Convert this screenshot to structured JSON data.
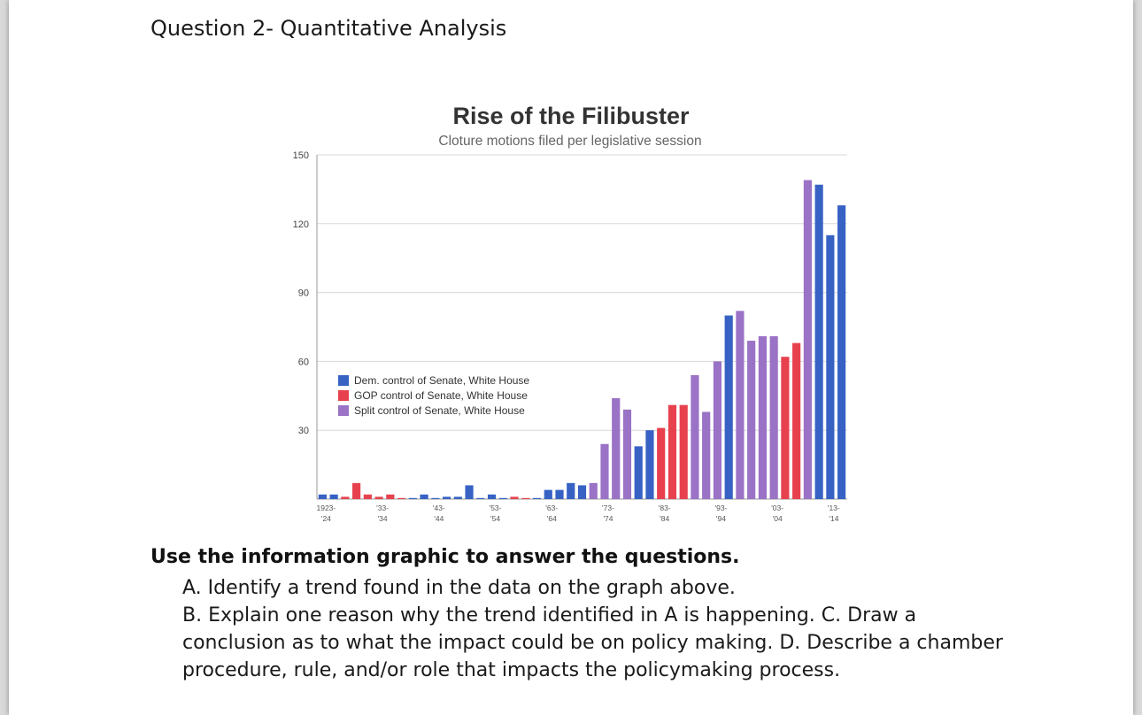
{
  "page": {
    "heading": "Question 2- Quantitative Analysis",
    "instructions": "Use the information graphic to answer the questions.",
    "question_a": "A. Identify a trend found in the data on the graph above.",
    "question_bcd": "B. Explain one reason why the trend identified in A is happening. C. Draw a conclusion as to what the impact could be on policy making. D. Describe a chamber procedure, rule, and/or role that impacts the policymaking process."
  },
  "chart_data": {
    "type": "bar",
    "title": "Rise of the Filibuster",
    "subtitle": "Cloture motions filed per legislative session",
    "xlabel": "",
    "ylabel": "",
    "ylim": [
      0,
      150
    ],
    "yticks": [
      30,
      60,
      90,
      120,
      150
    ],
    "grid": true,
    "legend_position": "left-middle",
    "legend": [
      {
        "key": "dem",
        "label": "Dem. control of Senate, White House",
        "color": "#3762c4"
      },
      {
        "key": "gop",
        "label": "GOP control of Senate, White House",
        "color": "#e8414e"
      },
      {
        "key": "split",
        "label": "Split control of Senate, White House",
        "color": "#9a72c6"
      }
    ],
    "xtick_labels": [
      {
        "index": 0,
        "top": "1923-",
        "bottom": "'24"
      },
      {
        "index": 5,
        "top": "'33-",
        "bottom": "'34"
      },
      {
        "index": 10,
        "top": "'43-",
        "bottom": "'44"
      },
      {
        "index": 15,
        "top": "'53-",
        "bottom": "'54"
      },
      {
        "index": 20,
        "top": "'63-",
        "bottom": "'64"
      },
      {
        "index": 25,
        "top": "'73-",
        "bottom": "'74"
      },
      {
        "index": 30,
        "top": "'83-",
        "bottom": "'84"
      },
      {
        "index": 35,
        "top": "'93-",
        "bottom": "'94"
      },
      {
        "index": 40,
        "top": "'03-",
        "bottom": "'04"
      },
      {
        "index": 45,
        "top": "'13-",
        "bottom": "'14"
      }
    ],
    "bars": [
      {
        "session": "1923-24",
        "value": 2,
        "control": "dem"
      },
      {
        "session": "1925-26",
        "value": 2,
        "control": "dem"
      },
      {
        "session": "1927-28",
        "value": 1,
        "control": "gop"
      },
      {
        "session": "1929-30",
        "value": 7,
        "control": "gop"
      },
      {
        "session": "1931-32",
        "value": 2,
        "control": "gop"
      },
      {
        "session": "1933-34",
        "value": 1,
        "control": "gop"
      },
      {
        "session": "1935-36",
        "value": 2,
        "control": "gop"
      },
      {
        "session": "1937-38",
        "value": 0,
        "control": "gop"
      },
      {
        "session": "1939-40",
        "value": 0,
        "control": "dem"
      },
      {
        "session": "1941-42",
        "value": 2,
        "control": "dem"
      },
      {
        "session": "1943-44",
        "value": 0,
        "control": "dem"
      },
      {
        "session": "1945-46",
        "value": 1,
        "control": "dem"
      },
      {
        "session": "1947-48",
        "value": 1,
        "control": "dem"
      },
      {
        "session": "1949-50",
        "value": 6,
        "control": "dem"
      },
      {
        "session": "1951-52",
        "value": 0,
        "control": "dem"
      },
      {
        "session": "1953-54",
        "value": 2,
        "control": "dem"
      },
      {
        "session": "1955-56",
        "value": 0,
        "control": "dem"
      },
      {
        "session": "1957-58",
        "value": 1,
        "control": "gop"
      },
      {
        "session": "1959-60",
        "value": 0,
        "control": "gop"
      },
      {
        "session": "1961-62",
        "value": 0,
        "control": "dem"
      },
      {
        "session": "1963-64",
        "value": 4,
        "control": "dem"
      },
      {
        "session": "1965-66",
        "value": 4,
        "control": "dem"
      },
      {
        "session": "1967-68",
        "value": 7,
        "control": "dem"
      },
      {
        "session": "1969-70",
        "value": 6,
        "control": "dem"
      },
      {
        "session": "1971-72",
        "value": 7,
        "control": "split"
      },
      {
        "session": "1973-74",
        "value": 24,
        "control": "split"
      },
      {
        "session": "1975-76",
        "value": 44,
        "control": "split"
      },
      {
        "session": "1977-78",
        "value": 39,
        "control": "split"
      },
      {
        "session": "1979-80",
        "value": 23,
        "control": "dem"
      },
      {
        "session": "1981-82",
        "value": 30,
        "control": "dem"
      },
      {
        "session": "1983-84",
        "value": 31,
        "control": "gop"
      },
      {
        "session": "1985-86",
        "value": 41,
        "control": "gop"
      },
      {
        "session": "1987-88",
        "value": 41,
        "control": "gop"
      },
      {
        "session": "1989-90",
        "value": 54,
        "control": "split"
      },
      {
        "session": "1991-92",
        "value": 38,
        "control": "split"
      },
      {
        "session": "1993-94",
        "value": 60,
        "control": "split"
      },
      {
        "session": "1995-96",
        "value": 80,
        "control": "dem"
      },
      {
        "session": "1997-98",
        "value": 82,
        "control": "split"
      },
      {
        "session": "1999-00",
        "value": 69,
        "control": "split"
      },
      {
        "session": "2001-02",
        "value": 71,
        "control": "split"
      },
      {
        "session": "2003-04",
        "value": 71,
        "control": "split"
      },
      {
        "session": "2005-06",
        "value": 62,
        "control": "gop"
      },
      {
        "session": "2007-08",
        "value": 68,
        "control": "gop"
      },
      {
        "session": "2009-10",
        "value": 139,
        "control": "split"
      },
      {
        "session": "2011-12",
        "value": 137,
        "control": "dem"
      },
      {
        "session": "2013-14",
        "value": 115,
        "control": "dem"
      },
      {
        "session": "2015-16",
        "value": 128,
        "control": "dem"
      }
    ]
  }
}
